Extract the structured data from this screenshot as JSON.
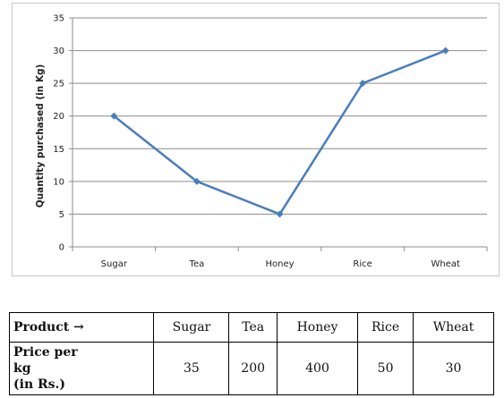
{
  "chart_data": {
    "type": "line",
    "categories": [
      "Sugar",
      "Tea",
      "Honey",
      "Rice",
      "Wheat"
    ],
    "series": [
      {
        "values": [
          20,
          10,
          5,
          25,
          30
        ],
        "color": "#4a7ebb"
      }
    ],
    "title": "",
    "xlabel": "",
    "ylabel": "Quantity purchased (in Kg)",
    "ylim": [
      0,
      35
    ],
    "yticks": [
      0,
      5,
      10,
      15,
      20,
      25,
      30,
      35
    ],
    "grid": true,
    "legend": "none"
  },
  "table": {
    "header_label": "Product →",
    "row_label_lines": [
      "Price per",
      "kg",
      "(in Rs.)"
    ],
    "products": [
      "Sugar",
      "Tea",
      "Honey",
      "Rice",
      "Wheat"
    ],
    "prices": [
      "35",
      "200",
      "400",
      "50",
      "30"
    ]
  }
}
